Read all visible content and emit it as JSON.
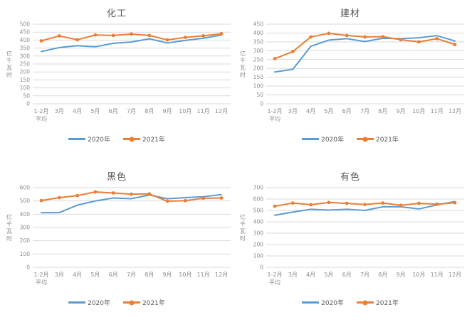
{
  "colors": {
    "series_2020": "#5B9BD5",
    "series_2021": "#ED7D31",
    "grid": "#D9D9D9",
    "axis_text": "#8C8C8C",
    "title_text": "#595959"
  },
  "chart_data": [
    {
      "type": "line",
      "title": "化工",
      "ylabel": "亿千瓦时",
      "xlabel": "",
      "categories": [
        "1-2月\n平均",
        "3月",
        "4月",
        "5月",
        "6月",
        "7月",
        "8月",
        "9月",
        "10月",
        "11月",
        "12月"
      ],
      "ylim": [
        0,
        500
      ],
      "ytick_step": 50,
      "grid": true,
      "legend_position": "bottom",
      "series": [
        {
          "name": "2020年",
          "color": "#5B9BD5",
          "marker": false,
          "values": [
            328,
            353,
            365,
            358,
            380,
            388,
            408,
            382,
            398,
            412,
            432
          ]
        },
        {
          "name": "2021年",
          "color": "#ED7D31",
          "marker": true,
          "values": [
            395,
            426,
            402,
            432,
            429,
            438,
            429,
            401,
            417,
            427,
            440
          ]
        }
      ]
    },
    {
      "type": "line",
      "title": "建材",
      "ylabel": "亿千瓦时",
      "xlabel": "",
      "categories": [
        "1-2月\n平均",
        "3月",
        "4月",
        "5月",
        "6月",
        "7月",
        "8月",
        "9月",
        "10月",
        "11月",
        "12月"
      ],
      "ylim": [
        0,
        450
      ],
      "ytick_step": 50,
      "grid": true,
      "legend_position": "bottom",
      "series": [
        {
          "name": "2020年",
          "color": "#5B9BD5",
          "marker": false,
          "values": [
            180,
            195,
            325,
            360,
            368,
            352,
            370,
            368,
            373,
            385,
            355
          ]
        },
        {
          "name": "2021年",
          "color": "#ED7D31",
          "marker": true,
          "values": [
            255,
            295,
            378,
            398,
            386,
            378,
            379,
            362,
            350,
            368,
            335
          ]
        }
      ]
    },
    {
      "type": "line",
      "title": "黑色",
      "ylabel": "亿千瓦时",
      "xlabel": "",
      "categories": [
        "1-2月\n平均",
        "3月",
        "4月",
        "5月",
        "6月",
        "7月",
        "8月",
        "9月",
        "10月",
        "11月",
        "12月"
      ],
      "ylim": [
        0,
        600
      ],
      "ytick_step": 100,
      "grid": true,
      "legend_position": "bottom",
      "series": [
        {
          "name": "2020年",
          "color": "#5B9BD5",
          "marker": false,
          "values": [
            412,
            412,
            468,
            500,
            522,
            517,
            545,
            517,
            525,
            532,
            548
          ]
        },
        {
          "name": "2021年",
          "color": "#ED7D31",
          "marker": true,
          "values": [
            503,
            525,
            540,
            568,
            560,
            551,
            553,
            498,
            502,
            520,
            522
          ]
        }
      ]
    },
    {
      "type": "line",
      "title": "有色",
      "ylabel": "亿千瓦时",
      "xlabel": "",
      "categories": [
        "1-2月\n平均",
        "3月",
        "4月",
        "5月",
        "6月",
        "7月",
        "8月",
        "9月",
        "10月",
        "11月",
        "12月"
      ],
      "ylim": [
        0,
        700
      ],
      "ytick_step": 100,
      "grid": true,
      "legend_position": "bottom",
      "series": [
        {
          "name": "2020年",
          "color": "#5B9BD5",
          "marker": false,
          "values": [
            458,
            485,
            510,
            503,
            510,
            500,
            532,
            532,
            513,
            548,
            578
          ]
        },
        {
          "name": "2021年",
          "color": "#ED7D31",
          "marker": true,
          "values": [
            537,
            565,
            550,
            570,
            562,
            552,
            565,
            545,
            562,
            555,
            568
          ]
        }
      ]
    }
  ]
}
